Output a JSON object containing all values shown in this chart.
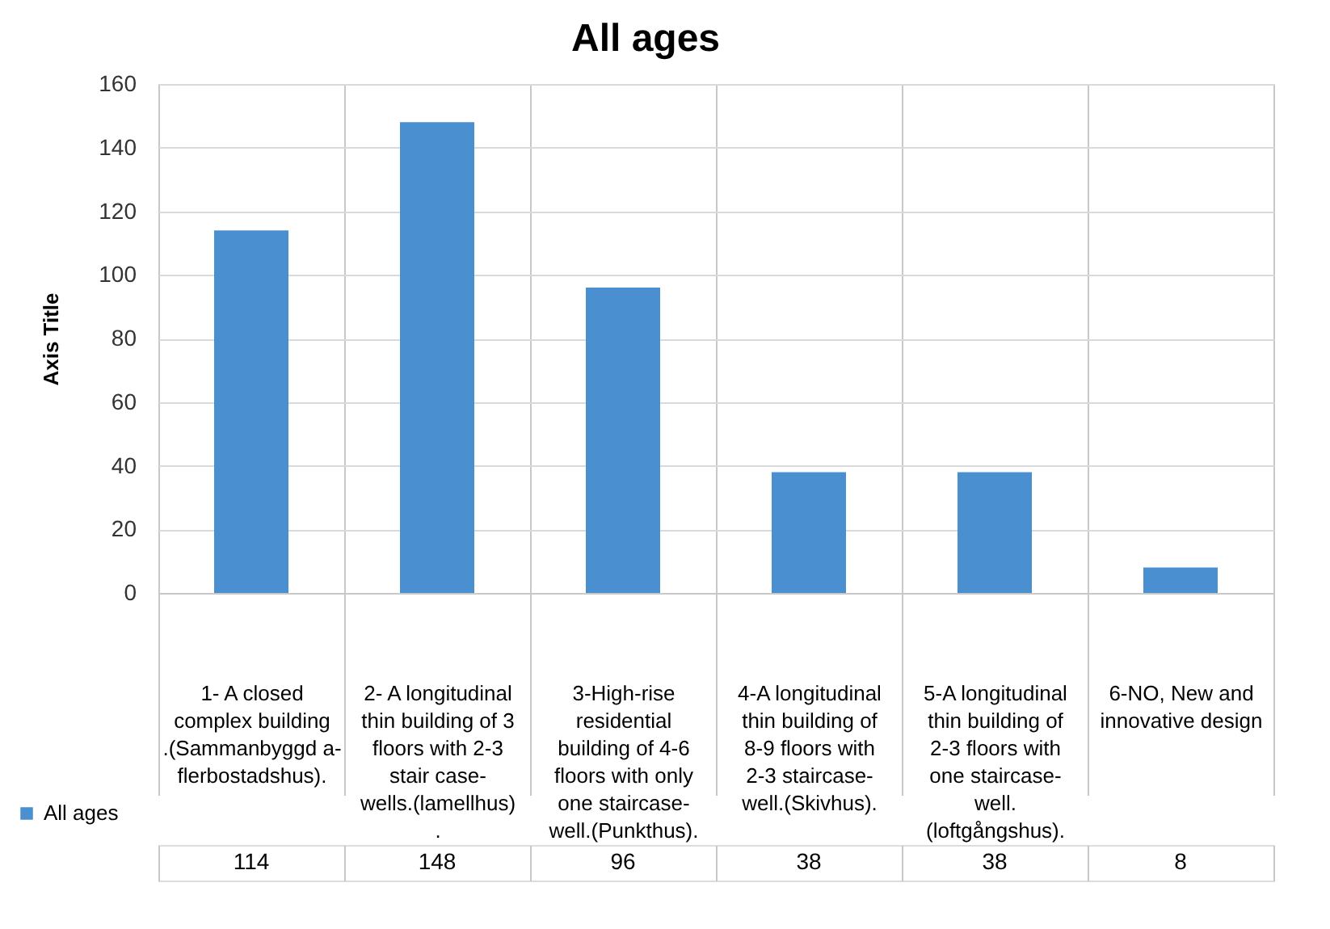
{
  "chart_data": {
    "type": "bar",
    "title": "All ages",
    "ylabel": "Axis Title",
    "categories": [
      "1- A closed complex building .(Sammanbyggd a- flerbostadshus).",
      "2- A longitudinal thin building of 3 floors with 2-3 stair case- wells.(lamellhus) .",
      "3-High-rise residential building of 4-6 floors with only one staircase- well.(Punkthus).",
      "4-A longitudinal thin building of 8-9 floors with 2-3 staircase- well.(Skivhus).",
      "5-A longitudinal thin building of 2-3 floors with one staircase- well. (loftgångshus).",
      "6-NO, New and innovative design"
    ],
    "series": [
      {
        "name": "All ages",
        "color": "#4a8fd0",
        "values": [
          114,
          148,
          96,
          38,
          38,
          8
        ]
      }
    ],
    "ylim": [
      0,
      160
    ],
    "yticks": [
      0,
      20,
      40,
      60,
      80,
      100,
      120,
      140,
      160
    ],
    "grid": "y",
    "legend": "bottom",
    "data_labels": true
  }
}
